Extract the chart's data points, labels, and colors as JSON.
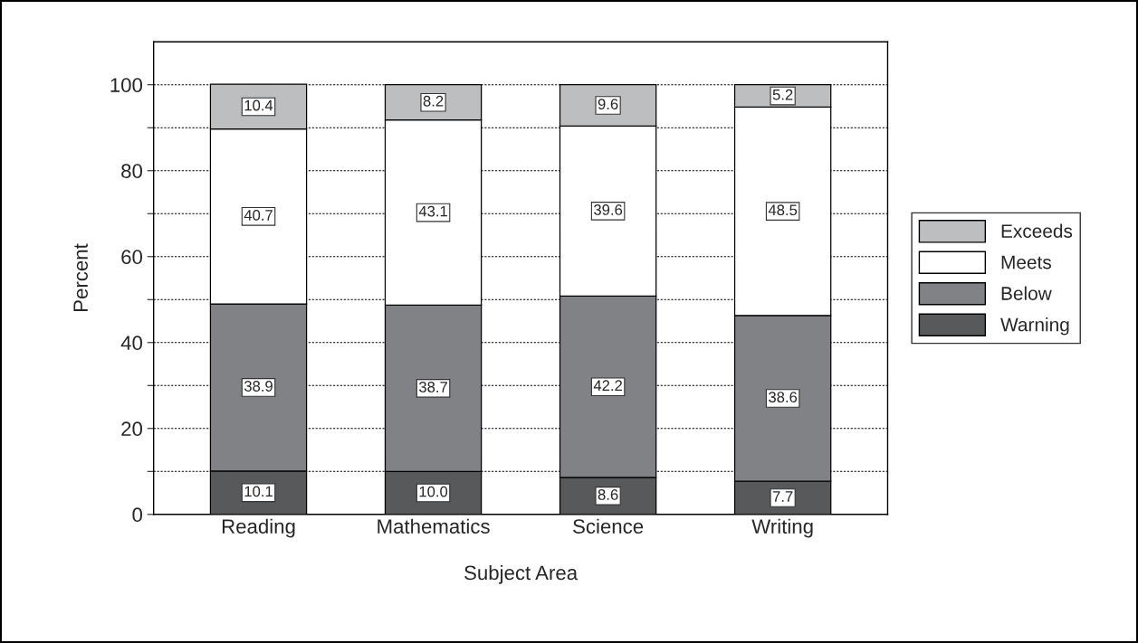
{
  "chart_data": {
    "type": "bar",
    "stacked": true,
    "xlabel": "Subject Area",
    "ylabel": "Percent",
    "categories": [
      "Reading",
      "Mathematics",
      "Science",
      "Writing"
    ],
    "series": [
      {
        "name": "Warning",
        "color": "#58595b",
        "values": [
          10.1,
          10.0,
          8.6,
          7.7
        ],
        "value_labels": [
          "10.1",
          "10.0",
          "8.6",
          "7.7"
        ]
      },
      {
        "name": "Below",
        "color": "#808285",
        "values": [
          38.9,
          38.7,
          42.2,
          38.6
        ],
        "value_labels": [
          "38.9",
          "38.7",
          "42.2",
          "38.6"
        ]
      },
      {
        "name": "Meets",
        "color": "#ffffff",
        "values": [
          40.7,
          43.1,
          39.6,
          48.5
        ],
        "value_labels": [
          "40.7",
          "43.1",
          "39.6",
          "48.5"
        ]
      },
      {
        "name": "Exceeds",
        "color": "#bcbec0",
        "values": [
          10.4,
          8.2,
          9.6,
          5.2
        ],
        "value_labels": [
          "10.4",
          "8.2",
          "9.6",
          "5.2"
        ]
      }
    ],
    "ylim": [
      0,
      110
    ],
    "yticks": [
      0,
      {
        "value": 10,
        "label": null
      },
      20,
      {
        "value": 30,
        "label": null
      },
      40,
      {
        "value": 50,
        "label": null
      },
      60,
      {
        "value": 70,
        "label": null
      },
      80,
      {
        "value": 90,
        "label": null
      },
      100
    ],
    "grid": "y",
    "legend": "right"
  }
}
